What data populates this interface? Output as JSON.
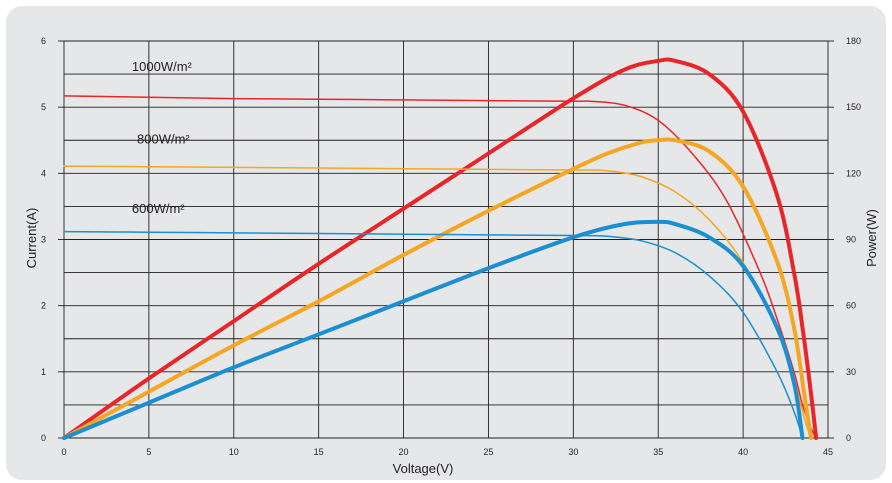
{
  "chart_data": {
    "type": "line",
    "xlabel": "Voltage(V)",
    "ylabel": "Current(A)",
    "y2label": "Power(W)",
    "xlim": [
      0,
      45
    ],
    "ylim": [
      0,
      6
    ],
    "y2lim": [
      0,
      180
    ],
    "x_ticks": [
      0,
      5,
      10,
      15,
      20,
      25,
      30,
      35,
      40,
      45
    ],
    "y_ticks": [
      0,
      1,
      2,
      3,
      4,
      5,
      6
    ],
    "y2_ticks": [
      0,
      30,
      60,
      90,
      120,
      150,
      180
    ],
    "grid": true,
    "colors": {
      "1000": "#e8262a",
      "800": "#f5a623",
      "600": "#1b8fd2"
    },
    "annotations": [
      {
        "irradiance": "1000",
        "text": "1000W/m²",
        "x": 4,
        "y": 5.55
      },
      {
        "irradiance": "800",
        "text": "800W/m²",
        "x": 4.3,
        "y": 4.45
      },
      {
        "irradiance": "600",
        "text": "600W/m²",
        "x": 4,
        "y": 3.4
      }
    ],
    "series": [
      {
        "kind": "current",
        "irradiance": "1000",
        "axis": "left",
        "x": [
          0,
          5,
          10,
          15,
          20,
          25,
          30,
          31,
          33,
          35,
          37,
          39,
          41,
          42,
          43,
          43.5,
          44,
          44.3
        ],
        "y": [
          5.17,
          5.15,
          5.13,
          5.12,
          5.11,
          5.1,
          5.09,
          5.09,
          5.03,
          4.8,
          4.3,
          3.6,
          2.5,
          1.8,
          1.0,
          0.5,
          0.15,
          0
        ]
      },
      {
        "kind": "power",
        "irradiance": "1000",
        "axis": "right",
        "x": [
          0,
          5,
          10,
          15,
          20,
          25,
          30,
          33,
          35,
          36,
          38,
          40,
          42,
          43,
          43.5,
          44,
          44.3
        ],
        "y": [
          0,
          27,
          53,
          79,
          104,
          129,
          154,
          167,
          171,
          171,
          165,
          148,
          110,
          75,
          50,
          20,
          0
        ]
      },
      {
        "kind": "current",
        "irradiance": "800",
        "axis": "left",
        "x": [
          0,
          5,
          10,
          15,
          20,
          25,
          30,
          32,
          34,
          36,
          38,
          40,
          42,
          43,
          43.6,
          44
        ],
        "y": [
          4.11,
          4.1,
          4.09,
          4.08,
          4.07,
          4.06,
          4.05,
          4.04,
          3.95,
          3.72,
          3.3,
          2.65,
          1.65,
          0.9,
          0.3,
          0
        ]
      },
      {
        "kind": "power",
        "irradiance": "800",
        "axis": "right",
        "x": [
          0,
          5,
          10,
          15,
          20,
          25,
          30,
          32,
          34,
          35,
          36,
          38,
          40,
          42,
          43,
          43.6,
          44
        ],
        "y": [
          0,
          21,
          42,
          62,
          83,
          103,
          122,
          129,
          134,
          135,
          135,
          130,
          114,
          80,
          50,
          20,
          0
        ]
      },
      {
        "kind": "current",
        "irradiance": "600",
        "axis": "left",
        "x": [
          0,
          5,
          10,
          15,
          20,
          25,
          30,
          32,
          34,
          36,
          38,
          40,
          42,
          43,
          43.5
        ],
        "y": [
          3.12,
          3.11,
          3.1,
          3.09,
          3.08,
          3.07,
          3.06,
          3.05,
          2.98,
          2.8,
          2.45,
          1.9,
          1.0,
          0.4,
          0
        ]
      },
      {
        "kind": "power",
        "irradiance": "600",
        "axis": "right",
        "x": [
          0,
          5,
          10,
          15,
          20,
          25,
          30,
          33,
          35,
          36,
          38,
          40,
          42,
          43,
          43.5
        ],
        "y": [
          0,
          16,
          32,
          47,
          62,
          77,
          91,
          97,
          98,
          97,
          91,
          78,
          50,
          25,
          0
        ]
      }
    ]
  }
}
